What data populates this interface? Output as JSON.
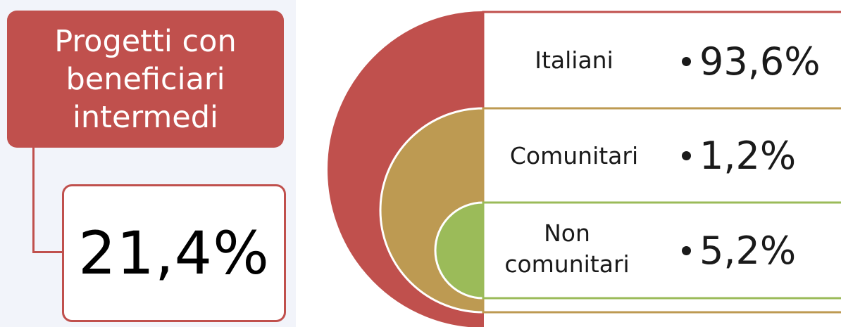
{
  "summary": {
    "title": "Progetti con beneficiari intermedi",
    "value": "21,4%"
  },
  "breakdown": {
    "items": [
      {
        "label": "Italiani",
        "value": "93,6%",
        "color": "#c0504d"
      },
      {
        "label": "Comunitari",
        "value": "1,2%",
        "color": "#bd9a52"
      },
      {
        "label": "Non comunitari",
        "value": "5,2%",
        "color": "#9bbb59"
      }
    ]
  }
}
